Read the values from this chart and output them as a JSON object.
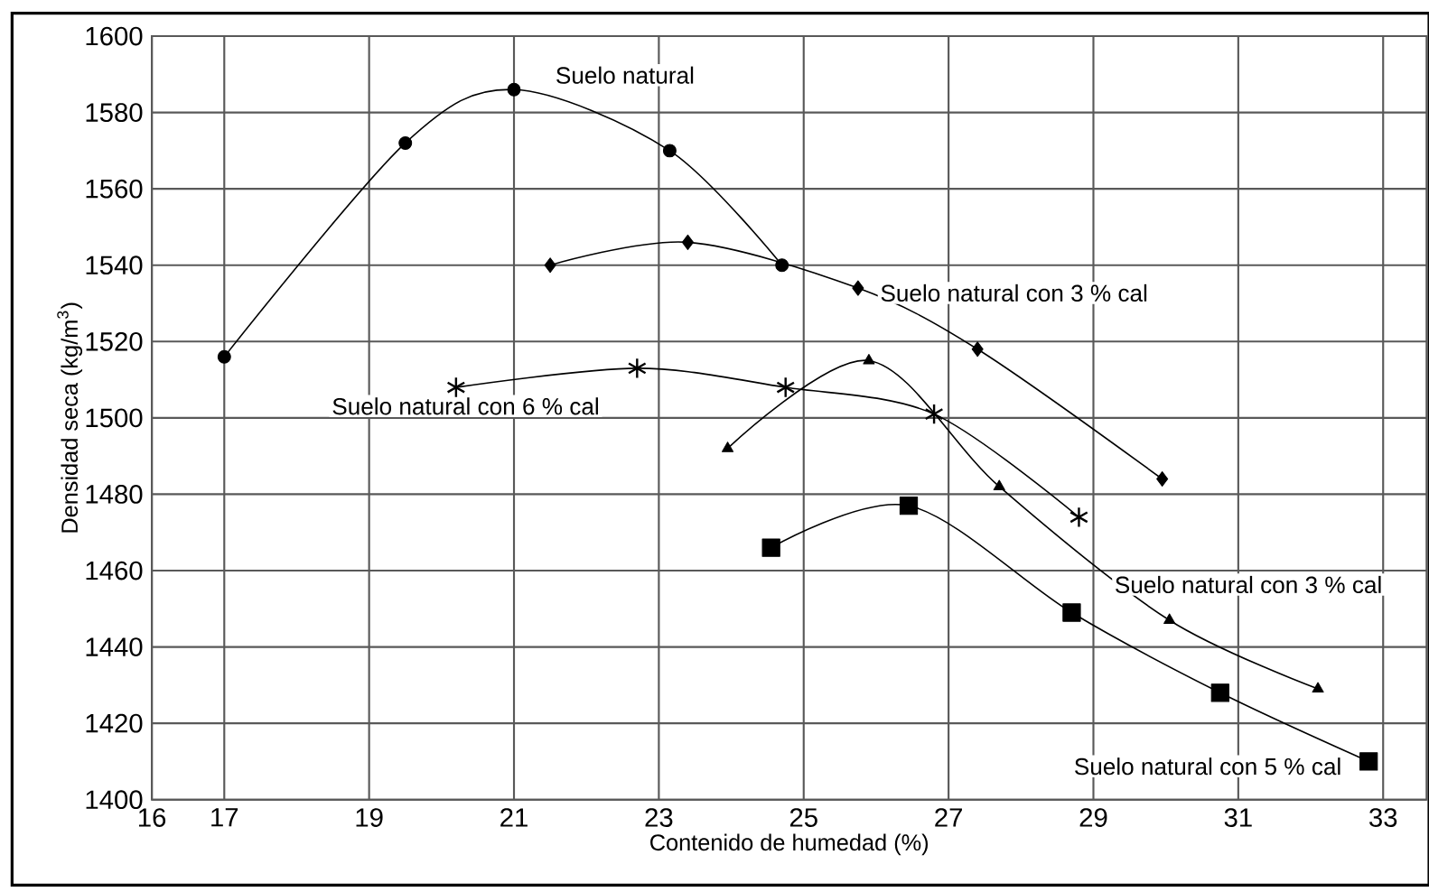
{
  "chart_data": {
    "type": "line",
    "xlabel": "Contenido de humedad (%)",
    "ylabel": "Densidad seca (kg/m$^{3}$)",
    "xlim": [
      16,
      33.6
    ],
    "ylim": [
      1400,
      1600
    ],
    "xticks": [
      16,
      17,
      19,
      21,
      23,
      25,
      27,
      29,
      31,
      33
    ],
    "yticks": [
      1400,
      1420,
      1440,
      1460,
      1480,
      1500,
      1520,
      1540,
      1560,
      1580,
      1600
    ],
    "grid": true,
    "line_style": "solid",
    "series": [
      {
        "name": "Suelo natural",
        "color": "#000000",
        "marker": "circle",
        "x": [
          17,
          19.5,
          21,
          23.15,
          24.7
        ],
        "values": [
          1516,
          1572,
          1586,
          1570,
          1540
        ]
      },
      {
        "name": "Suelo natural con 3 % cal",
        "color": "#000000",
        "marker": "diamond",
        "x": [
          21.5,
          23.4,
          25.75,
          27.4,
          29.95
        ],
        "values": [
          1540,
          1546,
          1534,
          1518,
          1484
        ]
      },
      {
        "name": "Suelo natural con 6 % cal",
        "color": "#000000",
        "marker": "cross",
        "x": [
          20.2,
          22.7,
          24.75,
          26.8,
          28.8
        ],
        "values": [
          1508,
          1513,
          1508,
          1501,
          1474
        ]
      },
      {
        "name": "Suelo natural con 3 % cal",
        "color": "#000000",
        "marker": "triangle",
        "x": [
          23.95,
          25.9,
          27.7,
          30.05,
          32.1
        ],
        "values": [
          1492,
          1515,
          1482,
          1447,
          1429
        ]
      },
      {
        "name": "Suelo natural con 5 % cal",
        "color": "#000000",
        "marker": "square",
        "x": [
          24.55,
          26.45,
          28.7,
          30.75,
          32.8
        ],
        "values": [
          1466,
          1477,
          1449,
          1428,
          1410
        ]
      }
    ]
  }
}
